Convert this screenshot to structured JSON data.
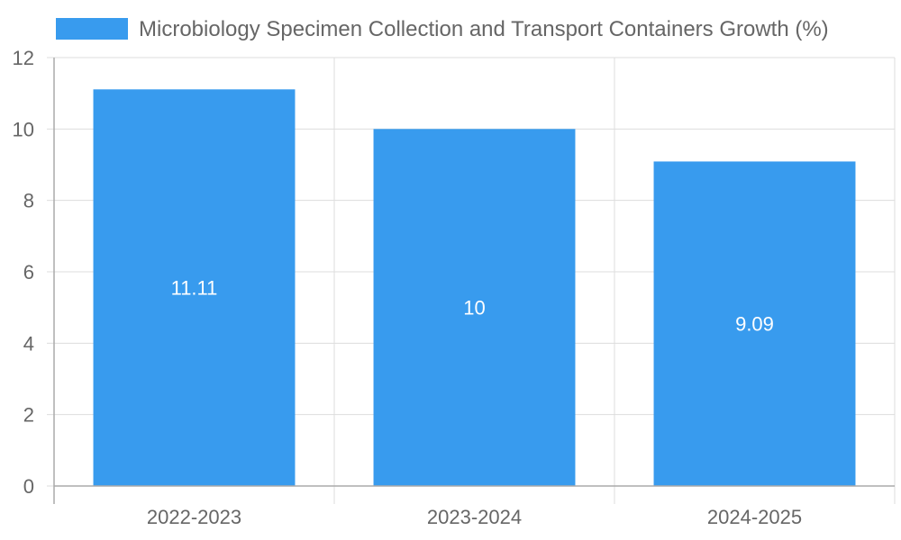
{
  "chart_data": {
    "type": "bar",
    "categories": [
      "2022-2023",
      "2023-2024",
      "2024-2025"
    ],
    "series": [
      {
        "name": "Microbiology Specimen Collection and Transport Containers Growth (%)",
        "values": [
          11.11,
          10,
          9.09
        ],
        "data_labels": [
          "11.11",
          "10",
          "9.09"
        ]
      }
    ],
    "ylim": [
      0,
      12
    ],
    "yticks": [
      0,
      2,
      4,
      6,
      8,
      10,
      12
    ],
    "grid": true,
    "legend_position": "top",
    "colors": {
      "bar": "#389bee",
      "grid": "#dddddd",
      "axis": "#aaaaaa",
      "text": "#666666"
    }
  }
}
